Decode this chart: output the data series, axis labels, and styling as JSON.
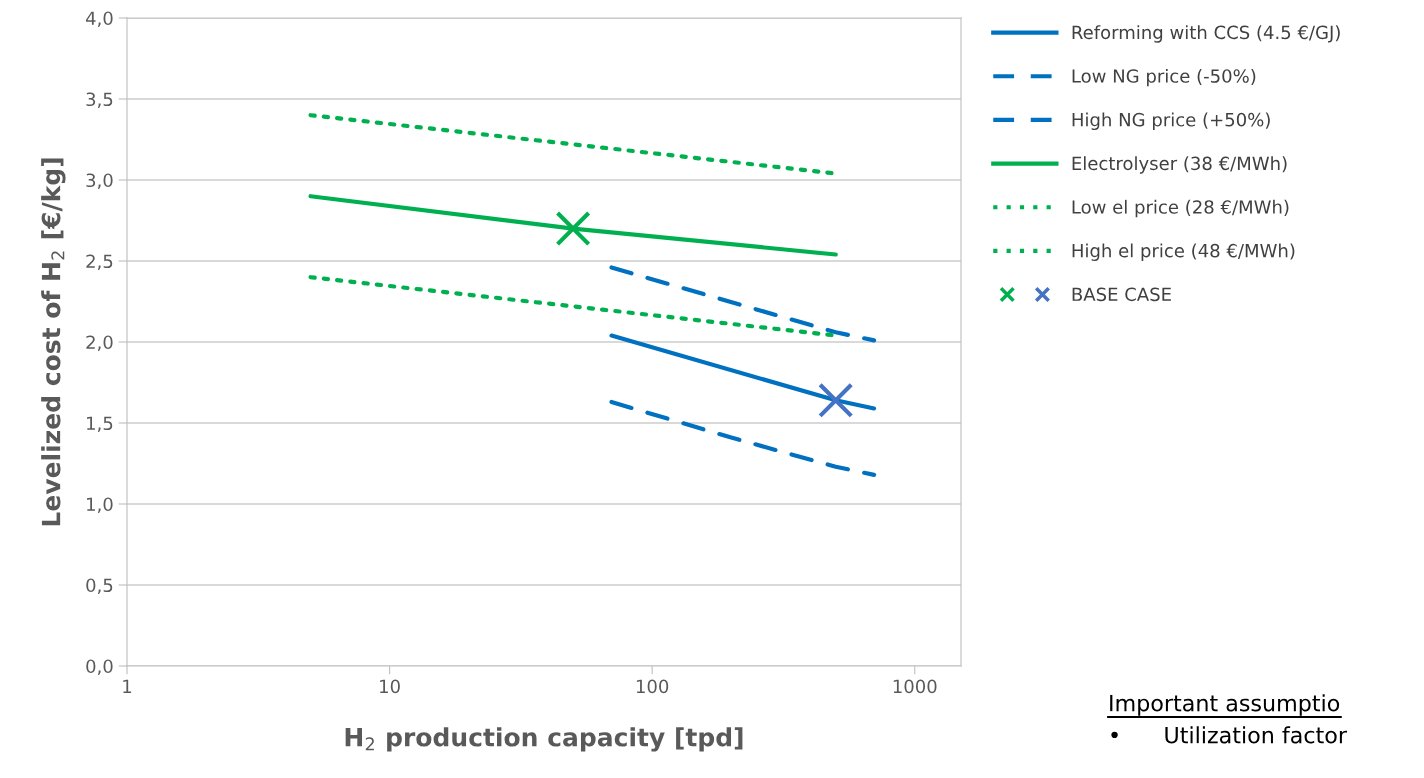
{
  "chart_data": {
    "type": "line",
    "xlabel": "H$_{2}$ production capacity [tpd]",
    "ylabel": "Levelized cost of H$_{2}$ [€/kg]",
    "log": "x",
    "xlim": [
      1,
      1500
    ],
    "xticks": [
      1,
      10,
      100,
      1000
    ],
    "ylim": [
      0,
      4
    ],
    "yticks": [
      {
        "value": 0,
        "label": "0,0"
      },
      {
        "value": 0.5,
        "label": "0,5"
      },
      {
        "value": 1,
        "label": "1,0"
      },
      {
        "value": 1.5,
        "label": "1,5"
      },
      {
        "value": 2,
        "label": "2,0"
      },
      {
        "value": 2.5,
        "label": "2,5"
      },
      {
        "value": 3,
        "label": "3,0"
      },
      {
        "value": 3.5,
        "label": "3,5"
      },
      {
        "value": 4,
        "label": "4,0"
      }
    ],
    "grid": "y",
    "legend": "right",
    "series": [
      {
        "name": "Reforming with CCS (4.5 €/GJ)",
        "color": "#0070c0",
        "line_style": "solid",
        "x": [
          70,
          500,
          700
        ],
        "values": [
          2.04,
          1.64,
          1.59
        ]
      },
      {
        "name": "Low NG price (-50%)",
        "color": "#0070c0",
        "line_style": "dashed",
        "x": [
          70,
          200,
          500,
          700
        ],
        "values": [
          1.63,
          1.41,
          1.23,
          1.18
        ]
      },
      {
        "name": "High NG price (+50%)",
        "color": "#0070c0",
        "line_style": "dashed",
        "x": [
          70,
          500,
          700
        ],
        "values": [
          2.46,
          2.06,
          2.01
        ]
      },
      {
        "name": "Electrolyser (38 €/MWh)",
        "color": "#00b050",
        "line_style": "solid",
        "x": [
          5,
          50,
          500
        ],
        "values": [
          2.9,
          2.7,
          2.54
        ]
      },
      {
        "name": "Low el price (28 €/MWh)",
        "color": "#00b050",
        "line_style": "dotted",
        "x": [
          5,
          500
        ],
        "values": [
          2.4,
          2.04
        ]
      },
      {
        "name": "High el price (48 €/MWh)",
        "color": "#00b050",
        "line_style": "dotted",
        "x": [
          5,
          500
        ],
        "values": [
          3.4,
          3.04
        ]
      },
      {
        "name": "BASE CASE",
        "type": "scatter",
        "marker": "cross",
        "colors": [
          "#00b050",
          "#4472c4"
        ],
        "x": [
          50,
          500
        ],
        "values": [
          2.7,
          1.64
        ]
      }
    ],
    "annotations": [
      "Important assumptio",
      "•      Utilization factor"
    ]
  }
}
